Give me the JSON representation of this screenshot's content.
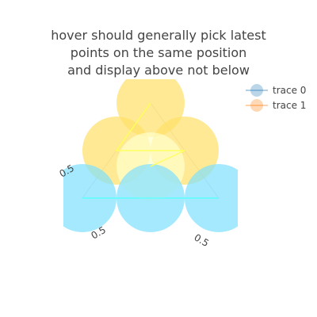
{
  "chart_data": {
    "type": "ternary_scatter",
    "title_lines": [
      "hover should generally pick latest",
      "points on the same position",
      "and display above not below"
    ],
    "axis_tick_label": "0.5",
    "legend": [
      "trace 0",
      "trace 1"
    ],
    "colors": {
      "trace0_legend": "#1f77b4",
      "trace1_legend": "#ff7f0e",
      "yellow_marker": "#ffe066",
      "light_yellow_marker": "#ffffcc",
      "cyan_marker": "#7fe0ff",
      "yellow_line": "#ffff66",
      "cyan_line": "#66ffff"
    },
    "series": [
      {
        "name": "trace 0",
        "points": [
          {
            "a": 1.0,
            "b": 0.0,
            "c": 0.0
          },
          {
            "a": 0.5,
            "b": 0.5,
            "c": 0.0
          },
          {
            "a": 0.5,
            "b": 0.0,
            "c": 0.5
          },
          {
            "a": 0.3333,
            "b": 0.3333,
            "c": 0.3333
          }
        ]
      },
      {
        "name": "trace 1",
        "points": [
          {
            "a": 0.0,
            "b": 1.0,
            "c": 0.0
          },
          {
            "a": 0.0,
            "b": 0.5,
            "c": 0.5
          },
          {
            "a": 0.0,
            "b": 0.0,
            "c": 1.0
          }
        ]
      }
    ]
  }
}
